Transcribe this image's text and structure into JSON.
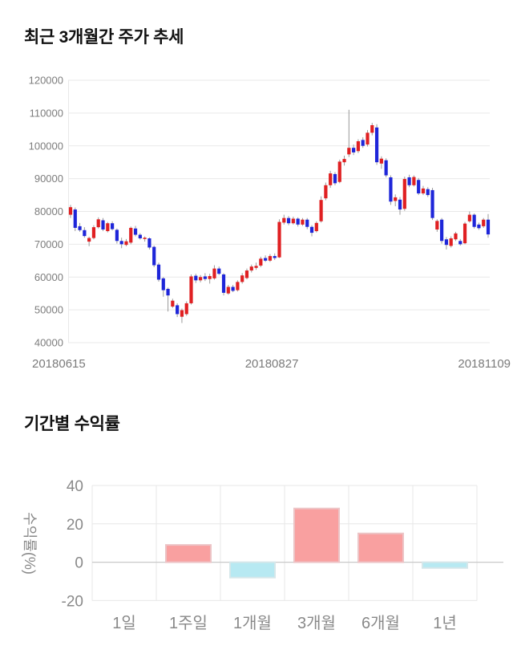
{
  "chart_data": [
    {
      "type": "candlestick",
      "title": "최근 3개월간 주가 추세",
      "y_ticks": [
        120000,
        110000,
        100000,
        90000,
        80000,
        70000,
        60000,
        50000,
        40000
      ],
      "ylim": [
        40000,
        120000
      ],
      "x_labels": [
        "20180615",
        "20180827",
        "20181109"
      ],
      "grid": "horizontal",
      "up_color": "#e02022",
      "down_color": "#1e26d9",
      "wick_color": "#999999",
      "grid_color": "#e9e9e9",
      "tick_color": "#7d7d7d",
      "candles_ohlc": [
        [
          79000,
          82000,
          78000,
          81300
        ],
        [
          80600,
          81200,
          74000,
          75000
        ],
        [
          75500,
          76500,
          73800,
          74300
        ],
        [
          74300,
          75200,
          72000,
          72500
        ],
        [
          70800,
          72300,
          69400,
          71900
        ],
        [
          71900,
          75800,
          71500,
          75200
        ],
        [
          75200,
          78200,
          74800,
          77600
        ],
        [
          77300,
          78000,
          74000,
          74500
        ],
        [
          74000,
          76800,
          73600,
          76400
        ],
        [
          76400,
          77000,
          74200,
          74600
        ],
        [
          74400,
          74800,
          70200,
          71000
        ],
        [
          71000,
          72000,
          68800,
          70000
        ],
        [
          69800,
          71600,
          69400,
          70900
        ],
        [
          70500,
          75400,
          70000,
          75000
        ],
        [
          74800,
          75600,
          72400,
          72900
        ],
        [
          72900,
          73400,
          71400,
          71800
        ],
        [
          71600,
          72400,
          70800,
          72000
        ],
        [
          71800,
          72100,
          68400,
          69000
        ],
        [
          69200,
          69600,
          63000,
          63600
        ],
        [
          63800,
          64400,
          58600,
          59200
        ],
        [
          59600,
          60000,
          54000,
          56000
        ],
        [
          56400,
          56800,
          49500,
          54400
        ],
        [
          51000,
          53400,
          50600,
          52800
        ],
        [
          51400,
          52000,
          47800,
          48700
        ],
        [
          47900,
          50400,
          46000,
          49900
        ],
        [
          48700,
          52600,
          48200,
          52000
        ],
        [
          52000,
          60800,
          51600,
          60200
        ],
        [
          60400,
          61000,
          58200,
          59000
        ],
        [
          59000,
          60600,
          58400,
          60000
        ],
        [
          60200,
          61200,
          58800,
          59400
        ],
        [
          59400,
          61000,
          58000,
          60300
        ],
        [
          59600,
          63600,
          59200,
          62600
        ],
        [
          62600,
          63200,
          60600,
          61000
        ],
        [
          60800,
          61200,
          54400,
          55200
        ],
        [
          55000,
          57600,
          54600,
          57000
        ],
        [
          57000,
          57600,
          55400,
          55800
        ],
        [
          56000,
          59000,
          55600,
          58500
        ],
        [
          58500,
          61200,
          58000,
          60500
        ],
        [
          59700,
          62600,
          59300,
          62000
        ],
        [
          62000,
          63800,
          61400,
          63200
        ],
        [
          62800,
          64400,
          62200,
          63400
        ],
        [
          63500,
          66200,
          63000,
          65600
        ],
        [
          65800,
          66600,
          64600,
          65000
        ],
        [
          65000,
          67000,
          64600,
          66400
        ],
        [
          66400,
          67200,
          65200,
          65800
        ],
        [
          66000,
          77600,
          65800,
          76800
        ],
        [
          76600,
          79000,
          76000,
          78000
        ],
        [
          78000,
          78600,
          75800,
          76400
        ],
        [
          76400,
          78400,
          76000,
          77800
        ],
        [
          77800,
          78200,
          75400,
          76000
        ],
        [
          76000,
          78000,
          75600,
          77500
        ],
        [
          77500,
          78000,
          74600,
          75300
        ],
        [
          75300,
          75800,
          72400,
          73500
        ],
        [
          74000,
          77000,
          73600,
          76500
        ],
        [
          77000,
          84600,
          76600,
          83500
        ],
        [
          84000,
          88800,
          83400,
          88000
        ],
        [
          88000,
          92400,
          87200,
          91600
        ],
        [
          91400,
          92000,
          88000,
          88600
        ],
        [
          89000,
          95800,
          88600,
          95200
        ],
        [
          95000,
          97000,
          94000,
          96000
        ],
        [
          97400,
          111000,
          96600,
          99400
        ],
        [
          99400,
          100400,
          97200,
          98000
        ],
        [
          98400,
          102000,
          97800,
          101400
        ],
        [
          101800,
          102600,
          99400,
          100000
        ],
        [
          100400,
          104800,
          99800,
          104000
        ],
        [
          104000,
          107000,
          103200,
          106300
        ],
        [
          105600,
          106600,
          94200,
          95000
        ],
        [
          94600,
          96800,
          93000,
          96100
        ],
        [
          95600,
          96200,
          90400,
          91000
        ],
        [
          90400,
          91000,
          82000,
          83000
        ],
        [
          83200,
          85200,
          81600,
          84300
        ],
        [
          83600,
          84400,
          79000,
          80600
        ],
        [
          80800,
          90600,
          80200,
          89900
        ],
        [
          90400,
          91200,
          87400,
          88000
        ],
        [
          88000,
          91000,
          87600,
          90500
        ],
        [
          89600,
          90200,
          85000,
          85500
        ],
        [
          85500,
          87800,
          85000,
          87000
        ],
        [
          86800,
          87400,
          84400,
          85000
        ],
        [
          86500,
          87200,
          77400,
          78000
        ],
        [
          74500,
          77600,
          73800,
          77100
        ],
        [
          77500,
          78000,
          70200,
          71000
        ],
        [
          71500,
          72200,
          68400,
          69800
        ],
        [
          69500,
          72400,
          69000,
          71800
        ],
        [
          71500,
          73800,
          71000,
          73300
        ],
        [
          71000,
          71600,
          69600,
          70000
        ],
        [
          70300,
          76800,
          70000,
          76300
        ],
        [
          77000,
          80000,
          76600,
          79000
        ],
        [
          79000,
          79400,
          74800,
          75300
        ],
        [
          76000,
          76600,
          74400,
          74900
        ],
        [
          75500,
          78000,
          75000,
          77500
        ],
        [
          77500,
          79200,
          72000,
          73000
        ]
      ]
    },
    {
      "type": "bar",
      "title": "기간별 수익률",
      "ylabel": "수익률(%)",
      "categories": [
        "1일",
        "1주일",
        "1개월",
        "3개월",
        "6개월",
        "1년"
      ],
      "values": [
        0,
        9,
        -8,
        28,
        15,
        -3
      ],
      "y_ticks": [
        40,
        20,
        0,
        -20
      ],
      "ylim": [
        -20,
        40
      ],
      "grid": "both",
      "positive_color": "#f9a0a0",
      "positive_border": "#ecc4c6",
      "negative_color": "#b7e9f2",
      "negative_border": "#d5e7ea",
      "grid_color": "#e7e7e7",
      "zero_line_color": "#c9c9c9",
      "tick_color": "#898989"
    }
  ]
}
